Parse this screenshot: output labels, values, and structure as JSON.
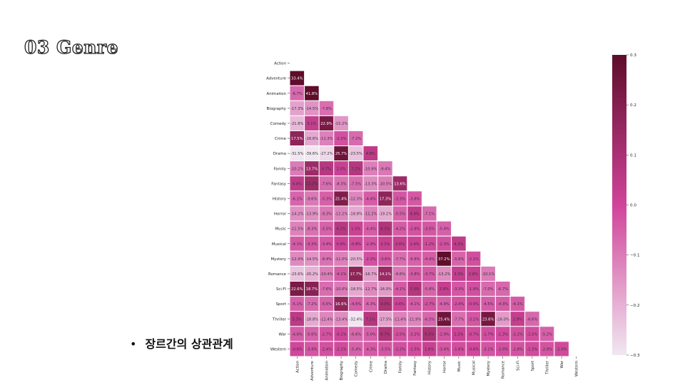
{
  "slide": {
    "title": "03 Genre",
    "bullet": "장르간의 상관관계",
    "bullet_marker": "•"
  },
  "chart_data": {
    "type": "heatmap",
    "title": "",
    "mask": "upper-triangle",
    "labels": [
      "Action",
      "Adventure",
      "Animation",
      "Biography",
      "Comedy",
      "Crime",
      "Drama",
      "Family",
      "Fantasy",
      "History",
      "Horror",
      "Music",
      "Musical",
      "Mystery",
      "Romance",
      "Sci-Fi",
      "Sport",
      "Thriller",
      "War",
      "Western"
    ],
    "colorbar": {
      "min": -0.3,
      "max": 0.3,
      "ticks": [
        "0.3",
        "0.2",
        "0.1",
        "0.0",
        "−0.1",
        "−0.2",
        "−0.3"
      ]
    },
    "colors": {
      "low": "#f1e7f1",
      "mid": "#d0449a",
      "high": "#5e0d2a",
      "grid": "#ffffff"
    },
    "values": [
      [],
      [
        0.334
      ],
      [
        -0.067,
        0.418
      ],
      [
        -0.173,
        -0.145,
        -0.078
      ],
      [
        -0.218,
        0.031,
        0.229,
        -0.152
      ],
      [
        0.175,
        -0.186,
        -0.113,
        -0.023,
        -0.072
      ],
      [
        -0.315,
        -0.396,
        -0.272,
        0.257,
        -0.235,
        0.048
      ],
      [
        -0.102,
        0.137,
        0.067,
        0.02,
        0.072,
        -0.109,
        -0.094
      ],
      [
        0.044,
        0.132,
        -0.076,
        -0.083,
        -0.075,
        -0.133,
        -0.105,
        0.136
      ],
      [
        -0.061,
        -0.096,
        -0.053,
        0.214,
        -0.123,
        -0.044,
        0.173,
        -0.033,
        -0.038
      ],
      [
        -0.142,
        -0.139,
        -0.093,
        -0.122,
        -0.188,
        -0.112,
        -0.191,
        -0.055,
        0.049,
        -0.071
      ],
      [
        -0.115,
        -0.083,
        -0.055,
        0.062,
        0.013,
        -0.044,
        0.081,
        -0.042,
        -0.028,
        -0.035,
        -0.054
      ],
      [
        -0.041,
        -0.033,
        -0.034,
        0.009,
        -0.008,
        -0.029,
        0.021,
        0.026,
        0.014,
        -0.012,
        -0.023,
        0.042
      ],
      [
        -0.129,
        -0.145,
        -0.084,
        -0.11,
        -0.205,
        -0.022,
        -0.036,
        -0.077,
        -0.056,
        -0.044,
        0.372,
        -0.058,
        -0.021
      ],
      [
        -0.236,
        -0.202,
        -0.104,
        -0.041,
        0.177,
        -0.167,
        0.141,
        -0.096,
        -0.038,
        -0.037,
        -0.132,
        0.033,
        0.026,
        -0.101
      ],
      [
        0.226,
        0.187,
        -0.076,
        -0.1,
        -0.185,
        -0.127,
        -0.16,
        -0.041,
        0.073,
        -0.058,
        0.029,
        -0.033,
        -0.019,
        -0.07,
        -0.067
      ],
      [
        -0.051,
        -0.072,
        -0.055,
        0.166,
        -0.045,
        -0.063,
        0.09,
        0.006,
        -0.041,
        -0.027,
        -0.049,
        -0.024,
        -0.009,
        -0.045,
        -0.043,
        -0.041
      ],
      [
        0.053,
        -0.188,
        -0.124,
        -0.134,
        -0.324,
        0.071,
        -0.175,
        -0.114,
        -0.119,
        -0.065,
        0.254,
        -0.077,
        -0.031,
        0.236,
        -0.16,
        0.029,
        -0.066
      ],
      [
        -0.046,
        -0.056,
        -0.027,
        -0.001,
        -0.066,
        -0.05,
        0.087,
        -0.025,
        -0.032,
        0.093,
        -0.029,
        0.012,
        -0.007,
        -0.017,
        -0.013,
        -0.022,
        -0.015,
        -0.052
      ],
      [
        -0.006,
        -0.034,
        -0.024,
        -0.011,
        -0.054,
        -0.043,
        -0.035,
        -0.022,
        -0.015,
        0.018,
        -0.034,
        -0.016,
        -0.006,
        -0.031,
        -0.02,
        -0.028,
        -0.013,
        -0.029,
        -0.01
      ]
    ]
  }
}
